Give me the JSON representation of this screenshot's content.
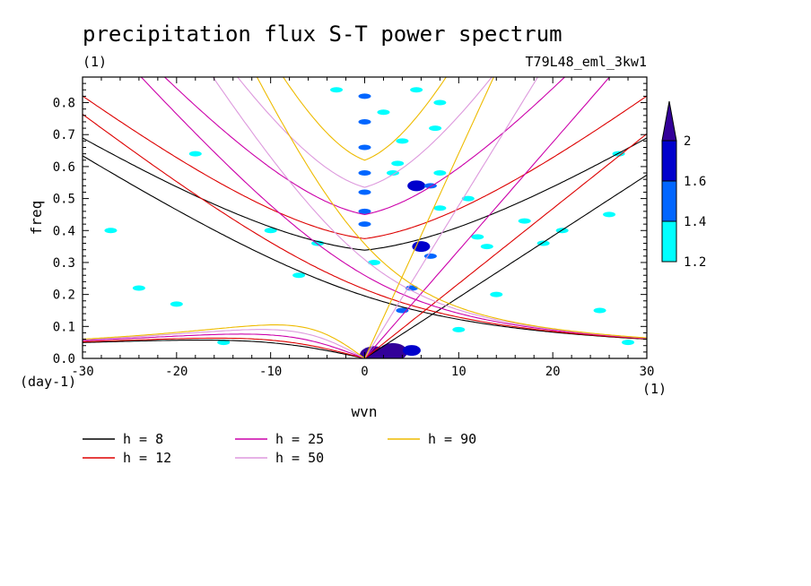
{
  "chart_data": {
    "type": "contour",
    "title": "precipitation flux S-T power spectrum",
    "subtitle_left": "(1)",
    "subtitle_right": "T79L48_eml_3kw1",
    "xlabel": "wvn",
    "ylabel": "freq",
    "x_unit": "(1)",
    "y_unit": "(day-1)",
    "xlim": [
      -30,
      30
    ],
    "ylim": [
      0,
      0.88
    ],
    "x_ticks": [
      -30,
      -20,
      -10,
      0,
      10,
      20,
      30
    ],
    "x_tick_labels": [
      "-30",
      "-20",
      "-10",
      "0",
      "10",
      "20",
      "30"
    ],
    "y_ticks": [
      0,
      0.1,
      0.2,
      0.3,
      0.4,
      0.5,
      0.6,
      0.7,
      0.8
    ],
    "y_tick_labels": [
      "0.0",
      "0.1",
      "0.2",
      "0.3",
      "0.4",
      "0.5",
      "0.6",
      "0.7",
      "0.8"
    ],
    "colorbar": {
      "levels": [
        1.2,
        1.4,
        1.6,
        2
      ],
      "labels": [
        "1.2",
        "1.4",
        "1.6",
        "2"
      ],
      "colors": [
        "#00ffff",
        "#0066ff",
        "#0000cc",
        "#330099"
      ]
    },
    "dispersion_curves": [
      {
        "label": "h =  8",
        "h": 8,
        "color": "#000000"
      },
      {
        "label": "h = 12",
        "h": 12,
        "color": "#dd0000"
      },
      {
        "label": "h = 25",
        "h": 25,
        "color": "#cc00aa"
      },
      {
        "label": "h = 50",
        "h": 50,
        "color": "#dd99dd"
      },
      {
        "label": "h = 90",
        "h": 90,
        "color": "#eebb00"
      }
    ],
    "contour_blobs": [
      {
        "x": 3,
        "y": 0.02,
        "level": 2
      },
      {
        "x": 1,
        "y": 0.01,
        "level": 2
      },
      {
        "x": 5,
        "y": 0.025,
        "level": 1.6
      },
      {
        "x": 0,
        "y": 0.82,
        "level": 1.4
      },
      {
        "x": 0,
        "y": 0.74,
        "level": 1.4
      },
      {
        "x": 0,
        "y": 0.66,
        "level": 1.4
      },
      {
        "x": 0,
        "y": 0.58,
        "level": 1.4
      },
      {
        "x": 0,
        "y": 0.52,
        "level": 1.4
      },
      {
        "x": 0,
        "y": 0.46,
        "level": 1.4
      },
      {
        "x": 0,
        "y": 0.42,
        "level": 1.4
      },
      {
        "x": 7.5,
        "y": 0.72,
        "level": 1.2
      },
      {
        "x": 5.5,
        "y": 0.54,
        "level": 1.6
      },
      {
        "x": 7,
        "y": 0.54,
        "level": 1.4
      },
      {
        "x": 8,
        "y": 0.47,
        "level": 1.2
      },
      {
        "x": 6,
        "y": 0.35,
        "level": 1.6
      },
      {
        "x": 7,
        "y": 0.32,
        "level": 1.4
      },
      {
        "x": 5,
        "y": 0.22,
        "level": 1.4
      },
      {
        "x": 4,
        "y": 0.15,
        "level": 1.4
      },
      {
        "x": 8,
        "y": 0.58,
        "level": 1.2
      },
      {
        "x": 3,
        "y": 0.58,
        "level": 1.2
      },
      {
        "x": 4,
        "y": 0.68,
        "level": 1.2
      },
      {
        "x": 5.5,
        "y": 0.84,
        "level": 1.2
      },
      {
        "x": 8,
        "y": 0.8,
        "level": 1.2
      },
      {
        "x": 2,
        "y": 0.77,
        "level": 1.2
      },
      {
        "x": -27,
        "y": 0.4,
        "level": 1.2
      },
      {
        "x": -18,
        "y": 0.64,
        "level": 1.2
      },
      {
        "x": -24,
        "y": 0.22,
        "level": 1.2
      },
      {
        "x": 12,
        "y": 0.38,
        "level": 1.2
      },
      {
        "x": 11,
        "y": 0.5,
        "level": 1.2
      },
      {
        "x": 17,
        "y": 0.43,
        "level": 1.2
      },
      {
        "x": 21,
        "y": 0.4,
        "level": 1.2
      },
      {
        "x": 26,
        "y": 0.45,
        "level": 1.2
      },
      {
        "x": 27,
        "y": 0.64,
        "level": 1.2
      },
      {
        "x": 25,
        "y": 0.15,
        "level": 1.2
      },
      {
        "x": 13,
        "y": 0.35,
        "level": 1.2
      },
      {
        "x": -5,
        "y": 0.36,
        "level": 1.2
      },
      {
        "x": -10,
        "y": 0.4,
        "level": 1.2
      },
      {
        "x": -15,
        "y": 0.05,
        "level": 1.2
      },
      {
        "x": -20,
        "y": 0.17,
        "level": 1.2
      },
      {
        "x": 1,
        "y": 0.3,
        "level": 1.2
      },
      {
        "x": 10,
        "y": 0.09,
        "level": 1.2
      },
      {
        "x": 14,
        "y": 0.2,
        "level": 1.2
      },
      {
        "x": -3,
        "y": 0.84,
        "level": 1.2
      },
      {
        "x": 28,
        "y": 0.05,
        "level": 1.2
      },
      {
        "x": -7,
        "y": 0.26,
        "level": 1.2
      },
      {
        "x": 3.5,
        "y": 0.61,
        "level": 1.2
      },
      {
        "x": 19,
        "y": 0.36,
        "level": 1.2
      }
    ]
  }
}
